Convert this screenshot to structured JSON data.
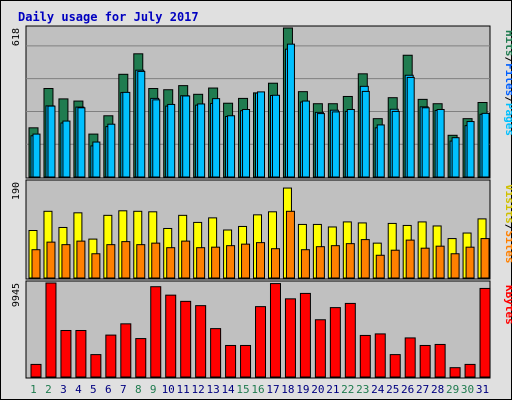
{
  "chart_data": {
    "type": "bar",
    "title": "Daily usage for July 2017",
    "categories": [
      "1",
      "2",
      "3",
      "4",
      "5",
      "6",
      "7",
      "8",
      "9",
      "10",
      "11",
      "12",
      "13",
      "14",
      "15",
      "16",
      "17",
      "18",
      "19",
      "20",
      "21",
      "22",
      "23",
      "24",
      "25",
      "26",
      "27",
      "28",
      "29",
      "30",
      "31"
    ],
    "weekend_days": [
      "1",
      "2",
      "8",
      "9",
      "15",
      "16",
      "22",
      "23",
      "29",
      "30"
    ],
    "panels": [
      {
        "id": "top",
        "max_label": "618",
        "ylim": [
          0,
          618
        ],
        "right_label": [
          "Pages",
          "/",
          "Files",
          "/",
          "Hits"
        ],
        "series": [
          {
            "name": "Hits",
            "values": [
              204,
              367,
              324,
              315,
              178,
              254,
              426,
              511,
              367,
              362,
              379,
              343,
              369,
              306,
              326,
              349,
              389,
              618,
              354,
              304,
              304,
              334,
              428,
              242,
              329,
              505,
              322,
              304,
              173,
              242,
              309
            ]
          },
          {
            "name": "Files",
            "values": [
              171,
              295,
              224,
              290,
              129,
              209,
              350,
              443,
              326,
              294,
              337,
              298,
              305,
              251,
              275,
              348,
              338,
              530,
              311,
              268,
              277,
              272,
              376,
              204,
              281,
              422,
              291,
              276,
              149,
              213,
              260
            ]
          },
          {
            "name": "Pages",
            "values": [
              178,
              294,
              232,
              287,
              145,
              219,
              351,
              438,
              320,
              301,
              336,
              303,
              325,
              254,
              280,
              353,
              339,
              551,
              315,
              263,
              270,
              280,
              355,
              216,
              272,
              413,
              287,
              280,
              163,
              230,
              264
            ]
          }
        ]
      },
      {
        "id": "middle",
        "max_label": "190",
        "ylim": [
          0,
          190
        ],
        "right_label": [
          "Sites",
          "/",
          "Visits"
        ],
        "series": [
          {
            "name": "Visits",
            "values": [
              94,
              132,
              100,
              129,
              77,
              124,
              133,
              132,
              131,
              98,
              124,
              110,
              119,
              95,
              102,
              125,
              131,
              178,
              106,
              106,
              101,
              111,
              109,
              69,
              108,
              104,
              111,
              103,
              78,
              89,
              117
            ]
          },
          {
            "name": "Sites",
            "values": [
              56,
              71,
              66,
              73,
              48,
              66,
              72,
              66,
              69,
              60,
              73,
              60,
              61,
              64,
              67,
              70,
              58,
              132,
              56,
              62,
              64,
              68,
              76,
              45,
              55,
              75,
              59,
              63,
              48,
              61,
              78
            ]
          }
        ]
      },
      {
        "id": "bottom",
        "max_label": "9945",
        "ylim": [
          0,
          9945
        ],
        "right_label": [
          "KBytes"
        ],
        "series": [
          {
            "name": "KBytes",
            "values": [
              1332,
              9945,
              4920,
              4920,
              2370,
              4434,
              5626,
              4066,
              9554,
              8660,
              8003,
              7550,
              5120,
              3336,
              3336,
              7446,
              9884,
              8270,
              8843,
              6057,
              7342,
              7784,
              4397,
              4560,
              2370,
              4135,
              3336,
              3444,
              987,
              1332,
              9370
            ]
          }
        ]
      }
    ],
    "colors": {
      "title": "#0000c0",
      "hits": "#207c50",
      "files": "#00c0ff",
      "pages": "#00c0ff",
      "visits": "#ffff00",
      "sites": "#ff8000",
      "kbytes": "#ff0000",
      "panel_bg": "#c0c0c0",
      "frame_bg": "#e0e0e0",
      "weekday_label": "#000080",
      "weekend_label": "#207c50"
    }
  }
}
